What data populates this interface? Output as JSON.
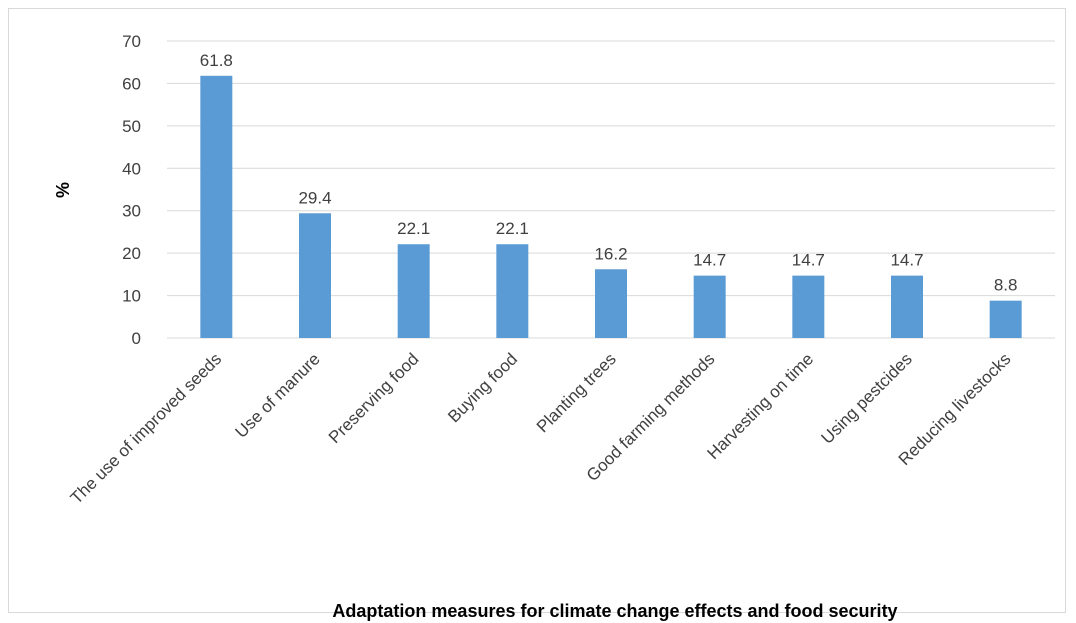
{
  "chart_data": {
    "type": "bar",
    "xlabel": "Adaptation measures for climate change effects and food security",
    "ylabel": "%",
    "ylim": [
      0,
      70
    ],
    "yticks": [
      0,
      10,
      20,
      30,
      40,
      50,
      60,
      70
    ],
    "grid": true,
    "legend": "none",
    "categories": [
      "The use of improved seeds",
      "Use of manure",
      "Preserving food",
      "Buying food",
      "Planting trees",
      "Good farming methods",
      "Harvesting on time",
      "Using pestcides",
      "Reducing livestocks"
    ],
    "values": [
      61.8,
      29.4,
      22.1,
      22.1,
      16.2,
      14.7,
      14.7,
      14.7,
      8.8
    ],
    "data_labels": [
      "61.8",
      "29.4",
      "22.1",
      "22.1",
      "16.2",
      "14.7",
      "14.7",
      "14.7",
      "8.8"
    ],
    "bar_color": "#5b9bd5",
    "grid_color": "#d9d9d9",
    "text_color": "#404040"
  }
}
